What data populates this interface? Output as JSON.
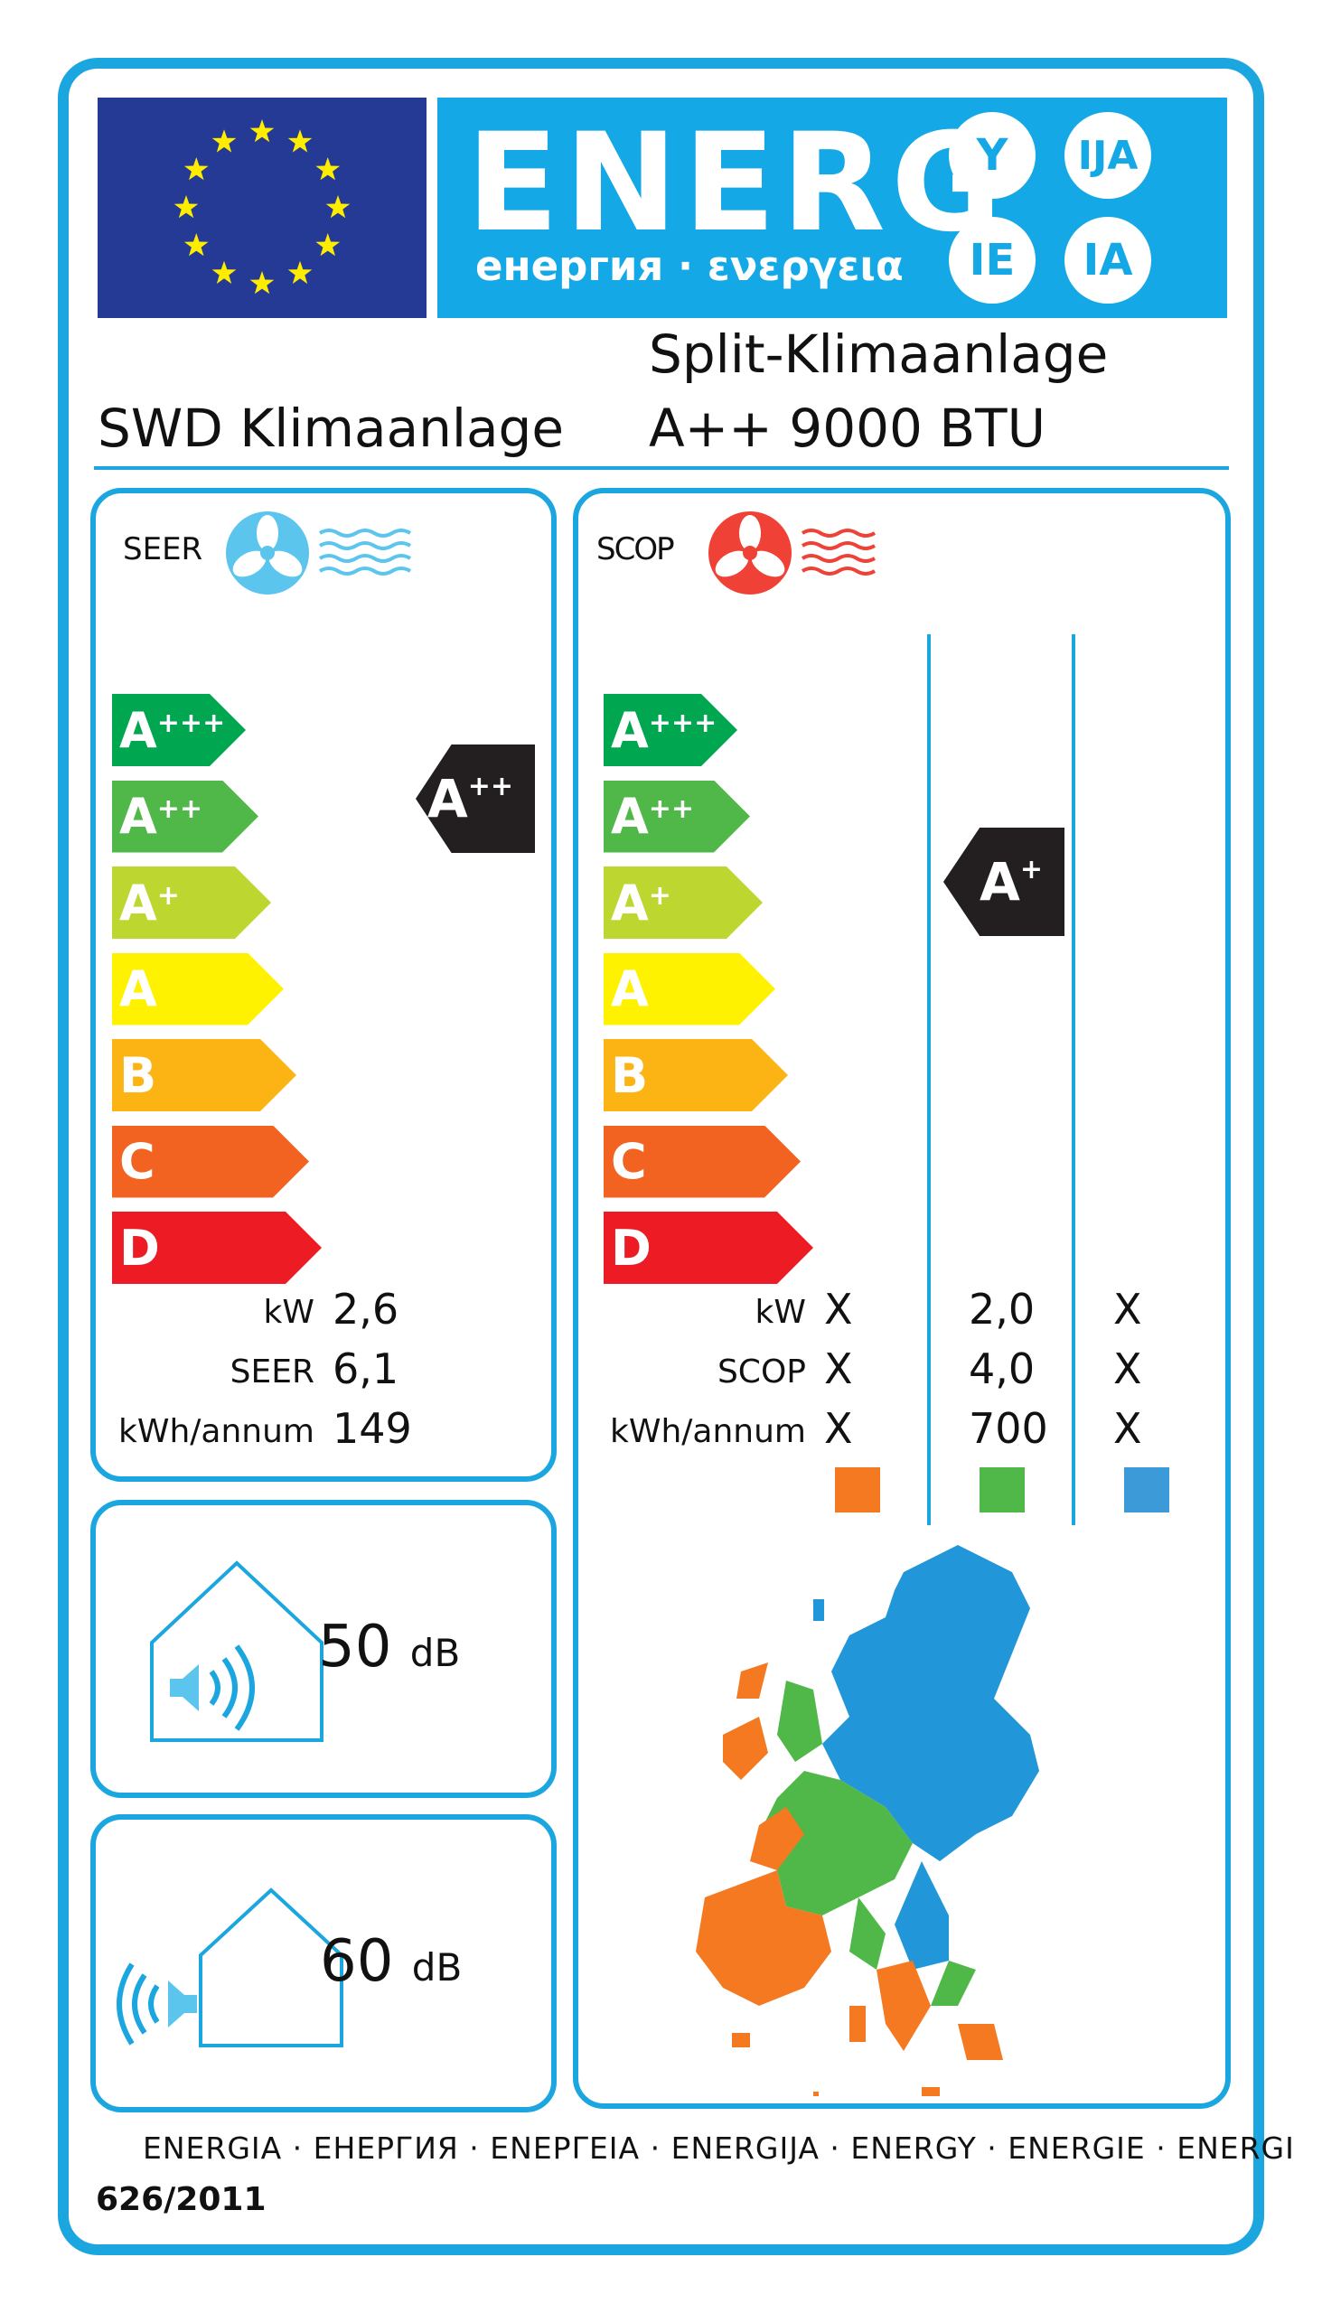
{
  "header": {
    "energy_word": "ENERG",
    "subtitle": "енергия · ενεργεια",
    "circles": [
      "Y",
      "IJA",
      "IE",
      "IA"
    ]
  },
  "product": {
    "supplier": "SWD Klimaanlage",
    "model_line1": "Split-Klimaanlage",
    "model_line2": "A++ 9000 BTU"
  },
  "cooling": {
    "label": "SEER",
    "classes": [
      {
        "letter": "A",
        "plus": "+++",
        "color": "#00a650"
      },
      {
        "letter": "A",
        "plus": "++",
        "color": "#4fb848"
      },
      {
        "letter": "A",
        "plus": "+",
        "color": "#bed630"
      },
      {
        "letter": "A",
        "plus": "",
        "color": "#fff200"
      },
      {
        "letter": "B",
        "plus": "",
        "color": "#fcb415"
      },
      {
        "letter": "C",
        "plus": "",
        "color": "#f26322"
      },
      {
        "letter": "D",
        "plus": "",
        "color": "#ed1c24"
      }
    ],
    "rating": {
      "letter": "A",
      "plus": "++",
      "class_index": 1
    },
    "rows": [
      {
        "label": "kW",
        "value": "2,6"
      },
      {
        "label": "SEER",
        "value": "6,1"
      },
      {
        "label": "kWh/annum",
        "value": "149"
      }
    ]
  },
  "heating": {
    "label": "SCOP",
    "rating": {
      "letter": "A",
      "plus": "+",
      "class_index": 2
    },
    "rows": [
      {
        "label": "kW",
        "values": [
          "X",
          "2,0",
          "X"
        ]
      },
      {
        "label": "SCOP",
        "values": [
          "X",
          "4,0",
          "X"
        ]
      },
      {
        "label": "kWh/annum",
        "values": [
          "X",
          "700",
          "X"
        ]
      }
    ],
    "zone_colors": [
      "#f47920",
      "#4fb848",
      "#3d9ad9"
    ]
  },
  "noise": {
    "indoor_value": "50",
    "indoor_unit": "dB",
    "outdoor_value": "60",
    "outdoor_unit": "dB"
  },
  "footer": {
    "languages": "ENERGIA · ЕНЕРГИЯ · ΕΝΕΡΓΕΙΑ · ENERGIJA · ENERGY · ENERGIE · ENERGI",
    "regulation": "626/2011"
  },
  "colors": {
    "brand_blue": "#1ba6e0",
    "eu_blue": "#253a95",
    "star_yellow": "#ffed00",
    "cool_icon": "#5bc5ee",
    "heat_icon": "#ef4136",
    "indicator": "#231f20",
    "map_blue": "#2196d8",
    "map_green": "#4fb848",
    "map_orange": "#f47920"
  }
}
